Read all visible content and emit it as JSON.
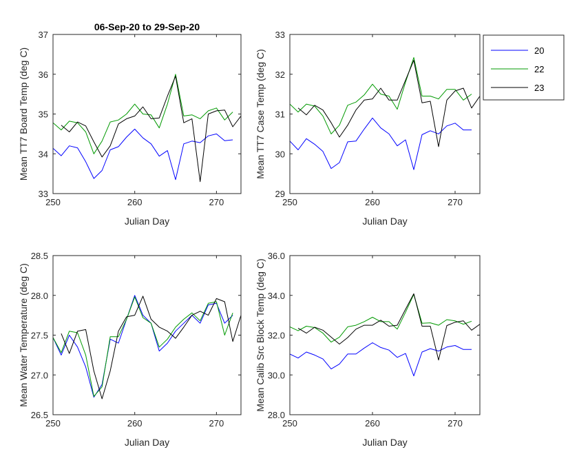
{
  "colors": {
    "20": "#0000ff",
    "22": "#009900",
    "23": "#000000"
  },
  "legend": {
    "entries": [
      {
        "name": "20",
        "color": "#0000ff"
      },
      {
        "name": "22",
        "color": "#009900"
      },
      {
        "name": "23",
        "color": "#000000"
      }
    ]
  },
  "chart_data": [
    {
      "type": "line",
      "title": "06-Sep-20 to 29-Sep-20",
      "xlabel": "Julian Day",
      "ylabel": "Mean TT7 Board Temp (deg C)",
      "xlim": [
        250,
        273
      ],
      "ylim": [
        33,
        37
      ],
      "xticks": [
        "250",
        "260",
        "270"
      ],
      "yticks": [
        "33",
        "34",
        "35",
        "36",
        "37"
      ],
      "series": [
        {
          "name": "20",
          "x": [
            250,
            251,
            252,
            253,
            254,
            255,
            256,
            257,
            258,
            259,
            260,
            261,
            262,
            263,
            264,
            265,
            266,
            267,
            268,
            269,
            270,
            271,
            272
          ],
          "values": [
            34.14,
            33.95,
            34.2,
            34.15,
            33.8,
            33.38,
            33.58,
            34.1,
            34.18,
            34.42,
            34.62,
            34.4,
            34.25,
            33.94,
            34.08,
            33.35,
            34.25,
            34.32,
            34.28,
            34.45,
            34.5,
            34.33,
            34.35
          ]
        },
        {
          "name": "22",
          "x": [
            250,
            251,
            252,
            253,
            254,
            255,
            256,
            257,
            258,
            259,
            260,
            261,
            262,
            263,
            264,
            265,
            266,
            267,
            268,
            269,
            270,
            271,
            272
          ],
          "values": [
            34.78,
            34.6,
            34.82,
            34.78,
            34.55,
            34.0,
            34.32,
            34.8,
            34.85,
            35.0,
            35.25,
            35.0,
            34.98,
            34.65,
            35.25,
            36.0,
            34.95,
            34.98,
            34.88,
            35.08,
            35.15,
            34.85,
            35.05
          ]
        },
        {
          "name": "23",
          "x": [
            251,
            252,
            253,
            254,
            255,
            256,
            257,
            258,
            259,
            260,
            261,
            262,
            263,
            264,
            265,
            266,
            267,
            268,
            269,
            270,
            271,
            272,
            273
          ],
          "values": [
            34.72,
            34.55,
            34.8,
            34.7,
            34.3,
            33.92,
            34.2,
            34.75,
            34.88,
            34.95,
            35.18,
            34.88,
            34.9,
            35.45,
            35.95,
            34.78,
            34.88,
            33.3,
            35.0,
            35.08,
            35.1,
            34.68,
            34.95
          ]
        }
      ]
    },
    {
      "type": "line",
      "xlabel": "Julian Day",
      "ylabel": "Mean TT7 Case Temp (deg C)",
      "xlim": [
        250,
        273
      ],
      "ylim": [
        29,
        33
      ],
      "xticks": [
        "250",
        "260",
        "270"
      ],
      "yticks": [
        "29",
        "30",
        "31",
        "32",
        "33"
      ],
      "series": [
        {
          "name": "20",
          "x": [
            250,
            251,
            252,
            253,
            254,
            255,
            256,
            257,
            258,
            259,
            260,
            261,
            262,
            263,
            264,
            265,
            266,
            267,
            268,
            269,
            270,
            271,
            272
          ],
          "values": [
            30.32,
            30.1,
            30.38,
            30.24,
            30.06,
            29.63,
            29.78,
            30.3,
            30.32,
            30.62,
            30.9,
            30.65,
            30.5,
            30.2,
            30.35,
            29.6,
            30.48,
            30.58,
            30.5,
            30.7,
            30.77,
            30.6,
            30.6
          ]
        },
        {
          "name": "22",
          "x": [
            250,
            251,
            252,
            253,
            254,
            255,
            256,
            257,
            258,
            259,
            260,
            261,
            262,
            263,
            264,
            265,
            266,
            267,
            268,
            269,
            270,
            271,
            272
          ],
          "values": [
            31.25,
            31.05,
            31.25,
            31.2,
            30.95,
            30.5,
            30.72,
            31.22,
            31.3,
            31.48,
            31.75,
            31.5,
            31.45,
            31.12,
            31.8,
            32.42,
            31.45,
            31.45,
            31.38,
            31.62,
            31.62,
            31.35,
            31.5
          ]
        },
        {
          "name": "23",
          "x": [
            251,
            252,
            253,
            254,
            255,
            256,
            257,
            258,
            259,
            260,
            261,
            262,
            263,
            264,
            265,
            266,
            267,
            268,
            269,
            270,
            271,
            272,
            273
          ],
          "values": [
            31.15,
            30.98,
            31.22,
            31.1,
            30.78,
            30.42,
            30.72,
            31.1,
            31.35,
            31.38,
            31.65,
            31.35,
            31.35,
            31.85,
            32.35,
            31.28,
            31.32,
            30.18,
            31.35,
            31.58,
            31.65,
            31.15,
            31.45
          ]
        }
      ]
    },
    {
      "type": "line",
      "xlabel": "Julian Day",
      "ylabel": "Mean Water Temperature (deg C)",
      "xlim": [
        250,
        273
      ],
      "ylim": [
        26.5,
        28.5
      ],
      "xticks": [
        "250",
        "260",
        "270"
      ],
      "yticks": [
        "26.5",
        "27.0",
        "27.5",
        "28.0",
        "28.5"
      ],
      "series": [
        {
          "name": "20",
          "x": [
            250,
            251,
            252,
            253,
            254,
            255,
            256,
            257,
            258,
            259,
            260,
            261,
            262,
            263,
            264,
            265,
            266,
            267,
            268,
            269,
            270,
            271,
            272
          ],
          "values": [
            27.47,
            27.25,
            27.5,
            27.35,
            27.1,
            26.72,
            26.88,
            27.45,
            27.4,
            27.7,
            28.0,
            27.75,
            27.65,
            27.3,
            27.4,
            27.55,
            27.65,
            27.75,
            27.65,
            27.88,
            27.9,
            27.65,
            27.75
          ]
        },
        {
          "name": "22",
          "x": [
            250,
            251,
            252,
            253,
            254,
            255,
            256,
            257,
            258,
            259,
            260,
            261,
            262,
            263,
            264,
            265,
            266,
            267,
            268,
            269,
            270,
            271,
            272
          ],
          "values": [
            27.47,
            27.28,
            27.55,
            27.53,
            27.25,
            26.73,
            26.85,
            27.48,
            27.48,
            27.7,
            27.98,
            27.72,
            27.65,
            27.35,
            27.45,
            27.6,
            27.7,
            27.78,
            27.68,
            27.9,
            27.92,
            27.5,
            27.78
          ]
        },
        {
          "name": "23",
          "x": [
            251,
            252,
            253,
            254,
            255,
            256,
            257,
            258,
            259,
            260,
            261,
            262,
            263,
            264,
            265,
            266,
            267,
            268,
            269,
            270,
            271,
            272,
            273
          ],
          "values": [
            27.52,
            27.27,
            27.55,
            27.57,
            27.05,
            26.7,
            27.05,
            27.55,
            27.73,
            27.75,
            27.99,
            27.7,
            27.6,
            27.55,
            27.46,
            27.6,
            27.75,
            27.8,
            27.75,
            27.96,
            27.92,
            27.42,
            27.75
          ]
        }
      ]
    },
    {
      "type": "line",
      "xlabel": "Julian Day",
      "ylabel": "Mean Calib Src Block Temp (deg C)",
      "xlim": [
        250,
        273
      ],
      "ylim": [
        28,
        36
      ],
      "xticks": [
        "250",
        "260",
        "270"
      ],
      "yticks": [
        "28.0",
        "30.0",
        "32.0",
        "34.0",
        "36.0"
      ],
      "series": [
        {
          "name": "20",
          "x": [
            250,
            251,
            252,
            253,
            254,
            255,
            256,
            257,
            258,
            259,
            260,
            261,
            262,
            263,
            264,
            265,
            266,
            267,
            268,
            269,
            270,
            271,
            272
          ],
          "values": [
            31.05,
            30.85,
            31.15,
            31.0,
            30.8,
            30.3,
            30.55,
            31.05,
            31.05,
            31.35,
            31.62,
            31.38,
            31.25,
            30.88,
            31.08,
            29.95,
            31.15,
            31.32,
            31.2,
            31.4,
            31.48,
            31.28,
            31.28
          ]
        },
        {
          "name": "22",
          "x": [
            250,
            251,
            252,
            253,
            254,
            255,
            256,
            257,
            258,
            259,
            260,
            261,
            262,
            263,
            264,
            265,
            266,
            267,
            268,
            269,
            270,
            271,
            272
          ],
          "values": [
            32.42,
            32.22,
            32.45,
            32.38,
            32.1,
            31.65,
            31.9,
            32.42,
            32.5,
            32.68,
            32.9,
            32.68,
            32.68,
            32.3,
            33.15,
            34.05,
            32.6,
            32.62,
            32.5,
            32.78,
            32.72,
            32.55,
            32.7
          ]
        },
        {
          "name": "23",
          "x": [
            251,
            252,
            253,
            254,
            255,
            256,
            257,
            258,
            259,
            260,
            261,
            262,
            263,
            264,
            265,
            266,
            267,
            268,
            269,
            270,
            271,
            272,
            273
          ],
          "values": [
            32.35,
            32.1,
            32.4,
            32.25,
            31.9,
            31.55,
            31.88,
            32.3,
            32.5,
            32.5,
            32.75,
            32.45,
            32.5,
            33.3,
            34.08,
            32.45,
            32.45,
            30.75,
            32.48,
            32.65,
            32.72,
            32.25,
            32.55
          ]
        }
      ]
    }
  ]
}
